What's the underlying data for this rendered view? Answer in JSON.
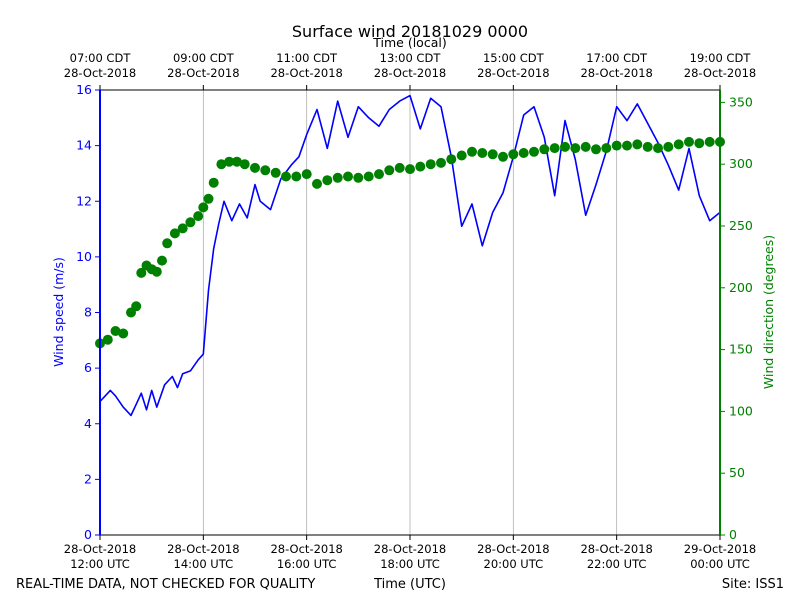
{
  "chart_data": {
    "type": "line",
    "title": "Surface wind 20181029 0000",
    "top_axis_label": "Time (local)",
    "xlabel": "Time (UTC)",
    "ylabel_left": "Wind speed (m/s)",
    "ylabel_right": "Wind direction (degrees)",
    "ylim_left": [
      0,
      16
    ],
    "ylim_right": [
      0,
      360
    ],
    "xlim_hours": [
      12,
      24
    ],
    "grid": "vertical",
    "left_ticks": [
      "0",
      "2",
      "4",
      "6",
      "8",
      "10",
      "12",
      "14",
      "16"
    ],
    "right_ticks": [
      "0",
      "50",
      "100",
      "150",
      "200",
      "250",
      "300",
      "350"
    ],
    "bottom_ticks": [
      {
        "line1": "28-Oct-2018",
        "line2": "12:00 UTC"
      },
      {
        "line1": "28-Oct-2018",
        "line2": "14:00 UTC"
      },
      {
        "line1": "28-Oct-2018",
        "line2": "16:00 UTC"
      },
      {
        "line1": "28-Oct-2018",
        "line2": "18:00 UTC"
      },
      {
        "line1": "28-Oct-2018",
        "line2": "20:00 UTC"
      },
      {
        "line1": "28-Oct-2018",
        "line2": "22:00 UTC"
      },
      {
        "line1": "29-Oct-2018",
        "line2": "00:00 UTC"
      }
    ],
    "top_ticks": [
      {
        "line1": "07:00 CDT",
        "line2": "28-Oct-2018"
      },
      {
        "line1": "09:00 CDT",
        "line2": "28-Oct-2018"
      },
      {
        "line1": "11:00 CDT",
        "line2": "28-Oct-2018"
      },
      {
        "line1": "13:00 CDT",
        "line2": "28-Oct-2018"
      },
      {
        "line1": "15:00 CDT",
        "line2": "28-Oct-2018"
      },
      {
        "line1": "17:00 CDT",
        "line2": "28-Oct-2018"
      },
      {
        "line1": "19:00 CDT",
        "line2": "28-Oct-2018"
      }
    ],
    "series": [
      {
        "name": "Wind speed (m/s)",
        "color": "#0000ff",
        "axis": "left",
        "style": "line",
        "x_hours": [
          12.0,
          12.1,
          12.2,
          12.3,
          12.45,
          12.6,
          12.7,
          12.8,
          12.9,
          13.0,
          13.1,
          13.25,
          13.4,
          13.5,
          13.6,
          13.75,
          13.9,
          14.0,
          14.1,
          14.2,
          14.3,
          14.4,
          14.55,
          14.7,
          14.85,
          15.0,
          15.1,
          15.3,
          15.5,
          15.7,
          15.85,
          16.0,
          16.2,
          16.4,
          16.6,
          16.8,
          17.0,
          17.2,
          17.4,
          17.6,
          17.8,
          18.0,
          18.2,
          18.4,
          18.6,
          18.8,
          19.0,
          19.2,
          19.4,
          19.6,
          19.8,
          20.0,
          20.2,
          20.4,
          20.6,
          20.8,
          21.0,
          21.2,
          21.4,
          21.6,
          21.8,
          22.0,
          22.2,
          22.4,
          22.6,
          22.8,
          23.0,
          23.2,
          23.4,
          23.6,
          23.8,
          24.0
        ],
        "values": [
          4.8,
          5.0,
          5.2,
          5.0,
          4.6,
          4.3,
          4.7,
          5.1,
          4.5,
          5.2,
          4.6,
          5.4,
          5.7,
          5.3,
          5.8,
          5.9,
          6.3,
          6.5,
          8.8,
          10.3,
          11.2,
          12.0,
          11.3,
          11.9,
          11.4,
          12.6,
          12.0,
          11.7,
          12.8,
          13.3,
          13.6,
          14.4,
          15.3,
          13.9,
          15.6,
          14.3,
          15.4,
          15.0,
          14.7,
          15.3,
          15.6,
          15.8,
          14.6,
          15.7,
          15.4,
          13.6,
          11.1,
          11.9,
          10.4,
          11.6,
          12.3,
          13.6,
          15.1,
          15.4,
          14.3,
          12.2,
          14.9,
          13.5,
          11.5,
          12.6,
          13.8,
          15.4,
          14.9,
          15.5,
          14.8,
          14.1,
          13.3,
          12.4,
          13.9,
          12.2,
          11.3,
          11.6
        ]
      },
      {
        "name": "Wind direction (degrees)",
        "color": "#008000",
        "axis": "right",
        "style": "markers",
        "x_hours": [
          12.0,
          12.15,
          12.3,
          12.45,
          12.6,
          12.7,
          12.8,
          12.9,
          13.0,
          13.1,
          13.2,
          13.3,
          13.45,
          13.6,
          13.75,
          13.9,
          14.0,
          14.1,
          14.2,
          14.35,
          14.5,
          14.65,
          14.8,
          15.0,
          15.2,
          15.4,
          15.6,
          15.8,
          16.0,
          16.2,
          16.4,
          16.6,
          16.8,
          17.0,
          17.2,
          17.4,
          17.6,
          17.8,
          18.0,
          18.2,
          18.4,
          18.6,
          18.8,
          19.0,
          19.2,
          19.4,
          19.6,
          19.8,
          20.0,
          20.2,
          20.4,
          20.6,
          20.8,
          21.0,
          21.2,
          21.4,
          21.6,
          21.8,
          22.0,
          22.2,
          22.4,
          22.6,
          22.8,
          23.0,
          23.2,
          23.4,
          23.6,
          23.8,
          24.0
        ],
        "values": [
          155,
          158,
          165,
          163,
          180,
          185,
          212,
          218,
          215,
          213,
          222,
          236,
          244,
          248,
          253,
          258,
          265,
          272,
          285,
          300,
          302,
          302,
          300,
          297,
          295,
          293,
          290,
          290,
          292,
          284,
          287,
          289,
          290,
          289,
          290,
          292,
          295,
          297,
          296,
          298,
          300,
          301,
          304,
          307,
          310,
          309,
          308,
          306,
          308,
          309,
          310,
          312,
          313,
          314,
          313,
          314,
          312,
          313,
          315,
          315,
          316,
          314,
          313,
          314,
          316,
          318,
          317,
          318,
          318
        ]
      }
    ]
  },
  "footer": {
    "left": "REAL-TIME DATA, NOT CHECKED FOR QUALITY",
    "center": "Time (UTC)",
    "right": "Site: ISS1"
  }
}
